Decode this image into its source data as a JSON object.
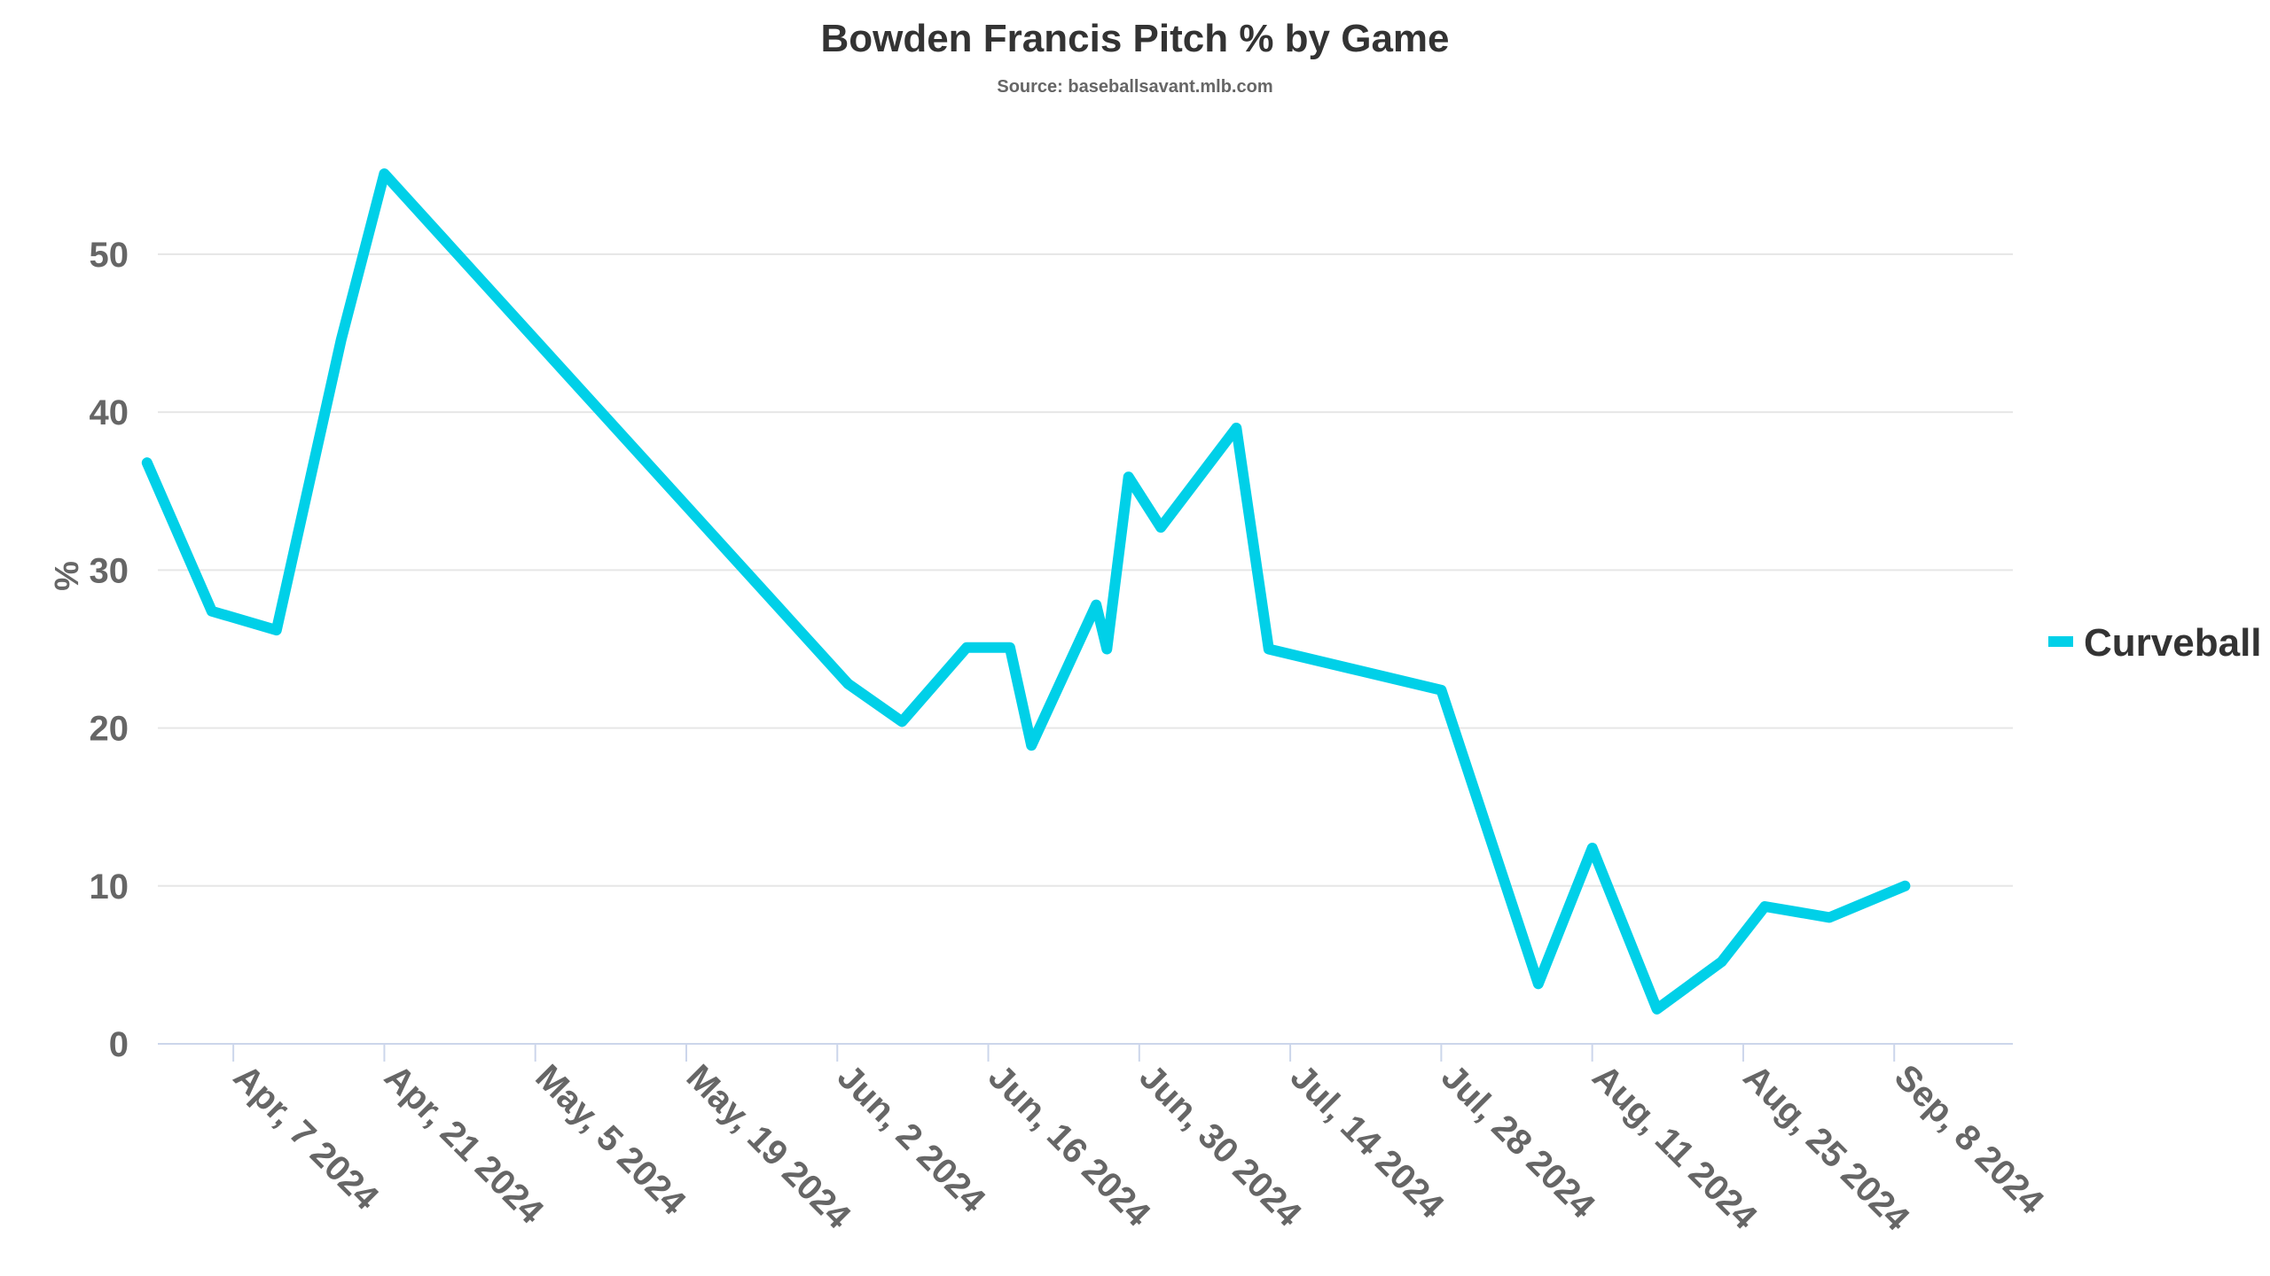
{
  "chart_data": {
    "type": "line",
    "title": "Bowden Francis Pitch % by Game",
    "subtitle": "Source: baseballsavant.mlb.com",
    "xlabel": "",
    "ylabel": "%",
    "ylim": [
      0,
      56
    ],
    "yticks": [
      0,
      10,
      20,
      30,
      40,
      50
    ],
    "xlim": [
      "2024-03-31",
      "2024-09-19"
    ],
    "xticks": [
      {
        "date": "2024-04-07",
        "label": "Apr, 7 2024"
      },
      {
        "date": "2024-04-21",
        "label": "Apr, 21 2024"
      },
      {
        "date": "2024-05-05",
        "label": "May, 5 2024"
      },
      {
        "date": "2024-05-19",
        "label": "May, 19 2024"
      },
      {
        "date": "2024-06-02",
        "label": "Jun, 2 2024"
      },
      {
        "date": "2024-06-16",
        "label": "Jun, 16 2024"
      },
      {
        "date": "2024-06-30",
        "label": "Jun, 30 2024"
      },
      {
        "date": "2024-07-14",
        "label": "Jul, 14 2024"
      },
      {
        "date": "2024-07-28",
        "label": "Jul, 28 2024"
      },
      {
        "date": "2024-08-11",
        "label": "Aug, 11 2024"
      },
      {
        "date": "2024-08-25",
        "label": "Aug, 25 2024"
      },
      {
        "date": "2024-09-08",
        "label": "Sep, 8 2024"
      }
    ],
    "grid": true,
    "legend_position": "right",
    "series": [
      {
        "name": "Curveball",
        "color": "#00d0e8",
        "x": [
          "2024-03-30",
          "2024-04-05",
          "2024-04-11",
          "2024-04-17",
          "2024-04-21",
          "2024-06-03",
          "2024-06-08",
          "2024-06-14",
          "2024-06-18",
          "2024-06-20",
          "2024-06-26",
          "2024-06-27",
          "2024-06-29",
          "2024-07-02",
          "2024-07-09",
          "2024-07-12",
          "2024-07-28",
          "2024-08-06",
          "2024-08-11",
          "2024-08-17",
          "2024-08-23",
          "2024-08-27",
          "2024-09-02",
          "2024-09-09"
        ],
        "values": [
          36.8,
          27.4,
          26.2,
          44.6,
          55.1,
          22.8,
          20.4,
          25.1,
          25.1,
          18.9,
          27.8,
          25.0,
          35.9,
          32.7,
          39.0,
          25.0,
          22.4,
          3.8,
          12.4,
          2.2,
          5.2,
          8.7,
          8.0,
          10.0
        ]
      }
    ]
  }
}
